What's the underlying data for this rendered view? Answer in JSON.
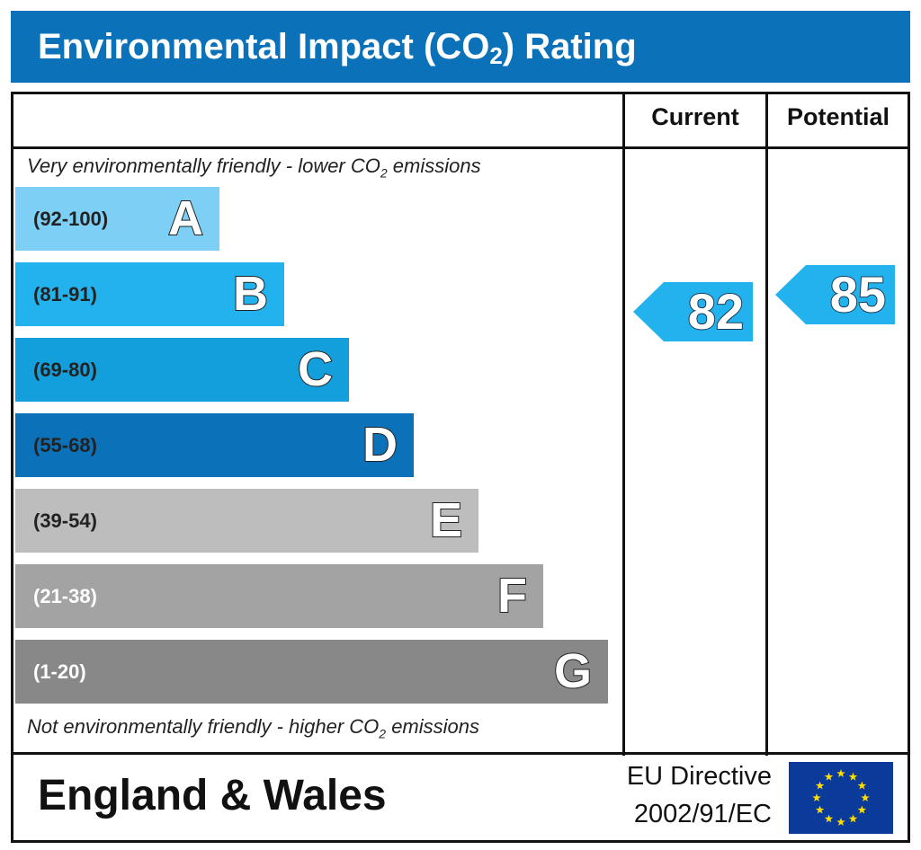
{
  "chart_data": {
    "type": "bar",
    "title": "Environmental Impact (CO2) Rating",
    "top_note": "Very environmentally friendly - lower CO2 emissions",
    "bottom_note": "Not environmentally friendly - higher CO2 emissions",
    "columns": [
      "Current",
      "Potential"
    ],
    "bands": [
      {
        "letter": "A",
        "range": "(92-100)",
        "min": 92,
        "max": 100,
        "color": "#7dcff5",
        "label_color": "#222222"
      },
      {
        "letter": "B",
        "range": "(81-91)",
        "min": 81,
        "max": 91,
        "color": "#22b3ee",
        "label_color": "#222222"
      },
      {
        "letter": "C",
        "range": "(69-80)",
        "min": 69,
        "max": 80,
        "color": "#139fdb",
        "label_color": "#222222"
      },
      {
        "letter": "D",
        "range": "(55-68)",
        "min": 55,
        "max": 68,
        "color": "#0b71b8",
        "label_color": "#222222"
      },
      {
        "letter": "E",
        "range": "(39-54)",
        "min": 39,
        "max": 54,
        "color": "#bdbdbd",
        "label_color": "#222222"
      },
      {
        "letter": "F",
        "range": "(21-38)",
        "min": 21,
        "max": 38,
        "color": "#a3a3a3",
        "label_color": "#ffffff"
      },
      {
        "letter": "G",
        "range": "(1-20)",
        "min": 1,
        "max": 20,
        "color": "#888888",
        "label_color": "#ffffff"
      }
    ],
    "current": {
      "value": 82,
      "band": "B",
      "color": "#22b3ee"
    },
    "potential": {
      "value": 85,
      "band": "B",
      "color": "#22b3ee"
    }
  },
  "footer": {
    "region": "England & Wales",
    "directive_line1": "EU Directive",
    "directive_line2": "2002/91/EC",
    "flag_colors": {
      "background": "#0a3a9a",
      "stars": "#ffdd00"
    }
  }
}
